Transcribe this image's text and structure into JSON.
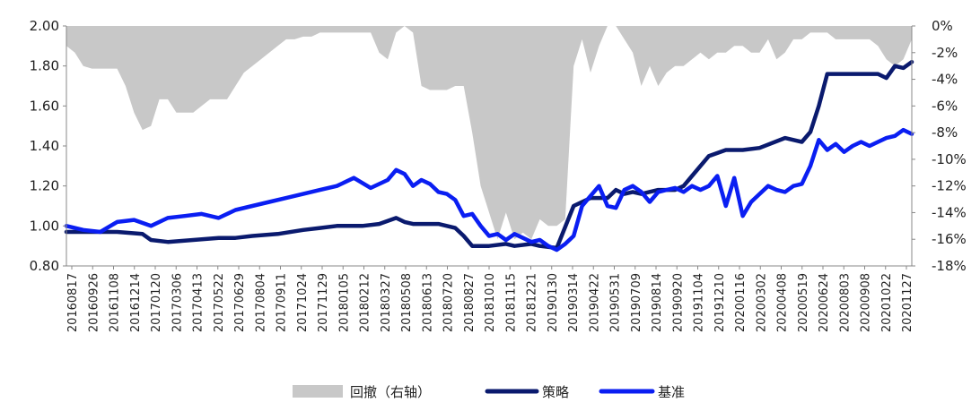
{
  "chart_data": {
    "type": "line",
    "title": "",
    "xlabel": "",
    "ylabel": "",
    "ylim": [
      0.8,
      2.0
    ],
    "y_ticks": [
      "2.00",
      "1.80",
      "1.60",
      "1.40",
      "1.20",
      "1.00",
      "0.80"
    ],
    "y2lim": [
      -18,
      0
    ],
    "y2_ticks": [
      "0%",
      "-2%",
      "-4%",
      "-6%",
      "-8%",
      "-10%",
      "-12%",
      "-14%",
      "-16%",
      "-18%"
    ],
    "x_tick_labels": [
      "20160817",
      "20160926",
      "20161108",
      "20161214",
      "20170120",
      "20170306",
      "20170413",
      "20170522",
      "20170629",
      "20170804",
      "20170911",
      "20171024",
      "20171129",
      "20180105",
      "20180212",
      "20180327",
      "20180508",
      "20180613",
      "20180720",
      "20180827",
      "20181010",
      "20181115",
      "20181221",
      "20190130",
      "20190314",
      "20190422",
      "20190531",
      "20190709",
      "20190814",
      "20190920",
      "20191104",
      "20191210",
      "20200116",
      "20200302",
      "20200408",
      "20200519",
      "20200624",
      "20200803",
      "20200908",
      "20201022",
      "20201127"
    ],
    "legend": [
      "回撤（右轴）",
      "策略",
      "基准"
    ],
    "legend_position": "bottom",
    "colors": {
      "drawdown": "#c8c8c8",
      "strategy": "#0a1a6e",
      "benchmark": "#0a1ef2"
    },
    "series": [
      {
        "name": "策略",
        "axis": "left",
        "x": [
          0,
          3,
          6,
          9,
          10,
          12,
          15,
          18,
          20,
          22,
          25,
          28,
          30,
          32,
          35,
          37,
          39,
          40,
          41,
          42,
          43,
          44,
          45,
          46,
          47,
          48,
          49,
          50,
          52,
          53,
          55,
          56,
          58,
          60,
          62,
          64,
          65,
          66,
          67,
          68,
          70,
          72,
          73,
          74,
          76,
          78,
          80,
          82,
          85,
          87,
          88,
          89,
          90,
          91,
          92,
          93,
          94,
          95,
          96,
          97,
          98,
          99,
          100
        ],
        "values": [
          0.97,
          0.97,
          0.97,
          0.96,
          0.93,
          0.92,
          0.93,
          0.94,
          0.94,
          0.95,
          0.96,
          0.98,
          0.99,
          1.0,
          1.0,
          1.01,
          1.04,
          1.02,
          1.01,
          1.01,
          1.01,
          1.01,
          1.0,
          0.99,
          0.95,
          0.9,
          0.9,
          0.9,
          0.91,
          0.9,
          0.91,
          0.9,
          0.89,
          1.1,
          1.14,
          1.14,
          1.18,
          1.16,
          1.17,
          1.16,
          1.18,
          1.18,
          1.2,
          1.25,
          1.35,
          1.38,
          1.38,
          1.39,
          1.44,
          1.42,
          1.47,
          1.6,
          1.76,
          1.76,
          1.76,
          1.76,
          1.76,
          1.76,
          1.76,
          1.74,
          1.8,
          1.79,
          1.82
        ]
      },
      {
        "name": "基准",
        "axis": "left",
        "x": [
          0,
          2,
          4,
          6,
          8,
          10,
          12,
          14,
          16,
          18,
          20,
          22,
          24,
          26,
          28,
          30,
          32,
          34,
          36,
          38,
          39,
          40,
          41,
          42,
          43,
          44,
          45,
          46,
          47,
          48,
          49,
          50,
          51,
          52,
          53,
          54,
          55,
          56,
          57,
          58,
          59,
          60,
          61,
          62,
          63,
          64,
          65,
          66,
          67,
          68,
          69,
          70,
          71,
          72,
          73,
          74,
          75,
          76,
          77,
          78,
          79,
          80,
          81,
          82,
          83,
          84,
          85,
          86,
          87,
          88,
          89,
          90,
          91,
          92,
          93,
          94,
          95,
          96,
          97,
          98,
          99,
          100
        ],
        "values": [
          1.0,
          0.98,
          0.97,
          1.02,
          1.03,
          1.0,
          1.04,
          1.05,
          1.06,
          1.04,
          1.08,
          1.1,
          1.12,
          1.14,
          1.16,
          1.18,
          1.2,
          1.24,
          1.19,
          1.23,
          1.28,
          1.26,
          1.2,
          1.23,
          1.21,
          1.17,
          1.16,
          1.13,
          1.05,
          1.06,
          1.0,
          0.95,
          0.96,
          0.93,
          0.96,
          0.94,
          0.92,
          0.93,
          0.9,
          0.88,
          0.91,
          0.95,
          1.1,
          1.15,
          1.2,
          1.1,
          1.09,
          1.18,
          1.2,
          1.17,
          1.12,
          1.17,
          1.18,
          1.19,
          1.17,
          1.2,
          1.18,
          1.2,
          1.25,
          1.1,
          1.24,
          1.05,
          1.12,
          1.16,
          1.2,
          1.18,
          1.17,
          1.2,
          1.21,
          1.3,
          1.43,
          1.38,
          1.41,
          1.37,
          1.4,
          1.42,
          1.4,
          1.42,
          1.44,
          1.45,
          1.48,
          1.46
        ]
      },
      {
        "name": "回撤（右轴）",
        "axis": "right",
        "type": "area",
        "x": [
          0,
          1,
          2,
          3,
          4,
          5,
          6,
          7,
          8,
          9,
          10,
          11,
          12,
          13,
          14,
          15,
          16,
          17,
          18,
          19,
          20,
          21,
          22,
          23,
          24,
          25,
          26,
          27,
          28,
          29,
          30,
          31,
          32,
          33,
          34,
          35,
          36,
          37,
          38,
          39,
          40,
          41,
          42,
          43,
          44,
          45,
          46,
          47,
          48,
          49,
          50,
          51,
          52,
          53,
          54,
          55,
          56,
          57,
          58,
          59,
          60,
          61,
          62,
          63,
          64,
          65,
          66,
          67,
          68,
          69,
          70,
          71,
          72,
          73,
          74,
          75,
          76,
          77,
          78,
          79,
          80,
          81,
          82,
          83,
          84,
          85,
          86,
          87,
          88,
          89,
          90,
          91,
          92,
          93,
          94,
          95,
          96,
          97,
          98,
          99,
          100
        ],
        "values": [
          -1.5,
          -2.0,
          -3.0,
          -3.2,
          -3.2,
          -3.2,
          -3.2,
          -4.5,
          -6.5,
          -7.8,
          -7.5,
          -5.5,
          -5.5,
          -6.5,
          -6.5,
          -6.5,
          -6.0,
          -5.5,
          -5.5,
          -5.5,
          -4.5,
          -3.5,
          -3.0,
          -2.5,
          -2.0,
          -1.5,
          -1.0,
          -1.0,
          -0.8,
          -0.8,
          -0.5,
          -0.5,
          -0.5,
          -0.5,
          -0.5,
          -0.5,
          -0.5,
          -2.0,
          -2.5,
          -0.5,
          0,
          -0.5,
          -4.5,
          -4.8,
          -4.8,
          -4.8,
          -4.5,
          -4.5,
          -8.0,
          -12.0,
          -14.0,
          -16.0,
          -14.0,
          -16.0,
          -15.5,
          -16.0,
          -14.5,
          -15.0,
          -15.0,
          -14.5,
          -3.0,
          -1.0,
          -3.5,
          -1.5,
          0,
          0,
          -1.0,
          -2.0,
          -4.5,
          -3.0,
          -4.5,
          -3.5,
          -3.0,
          -3.0,
          -2.5,
          -2.0,
          -2.5,
          -2.0,
          -2.0,
          -1.5,
          -1.5,
          -2.0,
          -2.0,
          -1.0,
          -2.5,
          -2.0,
          -1.0,
          -1.0,
          -0.5,
          -0.5,
          -0.5,
          -1.0,
          -1.0,
          -1.0,
          -1.0,
          -1.0,
          -1.5,
          -2.5,
          -3.0,
          -2.5,
          -1.0
        ]
      }
    ]
  }
}
